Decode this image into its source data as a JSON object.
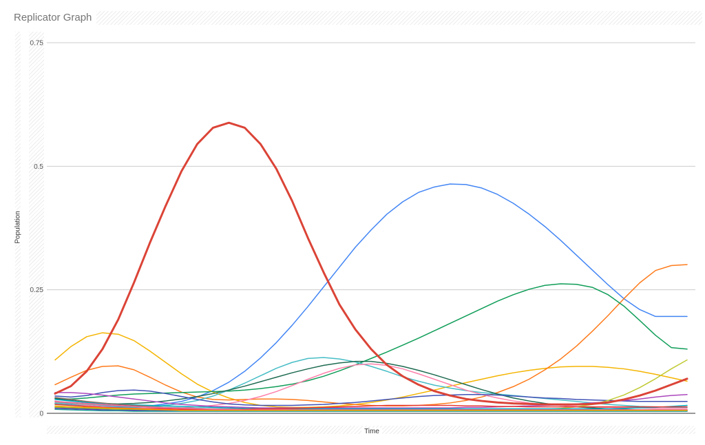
{
  "page": {
    "title": "Replicator Graph"
  },
  "chart_data": {
    "type": "line",
    "title": "Replicator Graph",
    "xlabel": "Time",
    "ylabel": "Population",
    "ylim": [
      0,
      0.75
    ],
    "yticks": [
      "0",
      "0.25",
      "0.5",
      "0.75"
    ],
    "xlim": [
      0,
      40
    ],
    "grid": true,
    "legend": "none",
    "series": [
      {
        "color": "#db4437",
        "width": 3,
        "values": [
          0.04,
          0.055,
          0.085,
          0.13,
          0.19,
          0.265,
          0.345,
          0.42,
          0.49,
          0.545,
          0.578,
          0.588,
          0.578,
          0.545,
          0.495,
          0.43,
          0.355,
          0.285,
          0.22,
          0.17,
          0.13,
          0.098,
          0.075,
          0.058,
          0.045,
          0.036,
          0.029,
          0.025,
          0.022,
          0.02,
          0.019,
          0.018,
          0.018,
          0.018,
          0.019,
          0.022,
          0.028,
          0.036,
          0.046,
          0.058,
          0.07
        ]
      },
      {
        "color": "#4285f4",
        "width": 1.5,
        "values": [
          0.02,
          0.018,
          0.016,
          0.014,
          0.013,
          0.013,
          0.015,
          0.019,
          0.024,
          0.033,
          0.046,
          0.063,
          0.085,
          0.112,
          0.143,
          0.178,
          0.216,
          0.256,
          0.296,
          0.336,
          0.371,
          0.403,
          0.428,
          0.447,
          0.458,
          0.464,
          0.463,
          0.456,
          0.443,
          0.425,
          0.403,
          0.378,
          0.35,
          0.32,
          0.29,
          0.26,
          0.232,
          0.21,
          0.196,
          0.196,
          0.196
        ]
      },
      {
        "color": "#f4b400",
        "width": 1.5,
        "values": [
          0.108,
          0.135,
          0.155,
          0.163,
          0.16,
          0.147,
          0.126,
          0.103,
          0.08,
          0.059,
          0.043,
          0.031,
          0.022,
          0.016,
          0.013,
          0.012,
          0.012,
          0.013,
          0.015,
          0.018,
          0.022,
          0.027,
          0.033,
          0.04,
          0.047,
          0.055,
          0.062,
          0.069,
          0.076,
          0.082,
          0.087,
          0.091,
          0.094,
          0.095,
          0.095,
          0.093,
          0.09,
          0.085,
          0.079,
          0.072,
          0.065
        ]
      },
      {
        "color": "#ff7a1a",
        "width": 1.5,
        "values": [
          0.058,
          0.073,
          0.087,
          0.095,
          0.096,
          0.088,
          0.073,
          0.057,
          0.043,
          0.033,
          0.028,
          0.027,
          0.028,
          0.029,
          0.029,
          0.028,
          0.026,
          0.023,
          0.02,
          0.018,
          0.016,
          0.015,
          0.015,
          0.016,
          0.018,
          0.021,
          0.026,
          0.033,
          0.042,
          0.054,
          0.069,
          0.088,
          0.11,
          0.136,
          0.166,
          0.198,
          0.232,
          0.264,
          0.289,
          0.299,
          0.301
        ]
      },
      {
        "color": "#0f9d58",
        "width": 1.5,
        "values": [
          0.03,
          0.029,
          0.031,
          0.034,
          0.037,
          0.039,
          0.04,
          0.041,
          0.042,
          0.043,
          0.044,
          0.045,
          0.047,
          0.05,
          0.054,
          0.059,
          0.066,
          0.075,
          0.086,
          0.098,
          0.111,
          0.124,
          0.138,
          0.152,
          0.167,
          0.182,
          0.197,
          0.212,
          0.227,
          0.24,
          0.251,
          0.259,
          0.262,
          0.261,
          0.255,
          0.24,
          0.217,
          0.188,
          0.158,
          0.133,
          0.13
        ]
      },
      {
        "color": "#46bdc6",
        "width": 1.5,
        "values": [
          0.02,
          0.017,
          0.015,
          0.013,
          0.012,
          0.012,
          0.013,
          0.016,
          0.02,
          0.026,
          0.035,
          0.047,
          0.061,
          0.076,
          0.091,
          0.103,
          0.111,
          0.113,
          0.11,
          0.104,
          0.095,
          0.085,
          0.074,
          0.065,
          0.057,
          0.051,
          0.046,
          0.042,
          0.039,
          0.036,
          0.033,
          0.03,
          0.027,
          0.024,
          0.021,
          0.018,
          0.016,
          0.014,
          0.013,
          0.012,
          0.012
        ]
      },
      {
        "color": "#1e6b52",
        "width": 1.5,
        "values": [
          0.03,
          0.026,
          0.022,
          0.02,
          0.019,
          0.02,
          0.022,
          0.025,
          0.029,
          0.034,
          0.04,
          0.047,
          0.055,
          0.064,
          0.073,
          0.082,
          0.09,
          0.097,
          0.102,
          0.105,
          0.105,
          0.101,
          0.095,
          0.087,
          0.078,
          0.068,
          0.058,
          0.048,
          0.039,
          0.031,
          0.025,
          0.02,
          0.016,
          0.013,
          0.011,
          0.009,
          0.008,
          0.007,
          0.006,
          0.006,
          0.006
        ]
      },
      {
        "color": "#ff80ab",
        "width": 1.5,
        "values": [
          0.025,
          0.02,
          0.016,
          0.013,
          0.011,
          0.01,
          0.01,
          0.01,
          0.011,
          0.013,
          0.016,
          0.02,
          0.026,
          0.034,
          0.044,
          0.056,
          0.069,
          0.081,
          0.091,
          0.098,
          0.1,
          0.097,
          0.09,
          0.08,
          0.069,
          0.058,
          0.047,
          0.038,
          0.031,
          0.025,
          0.021,
          0.018,
          0.016,
          0.014,
          0.013,
          0.012,
          0.011,
          0.011,
          0.01,
          0.01,
          0.01
        ]
      },
      {
        "color": "#3f51b5",
        "width": 1.5,
        "values": [
          0.035,
          0.033,
          0.036,
          0.042,
          0.046,
          0.047,
          0.045,
          0.04,
          0.034,
          0.028,
          0.023,
          0.019,
          0.017,
          0.016,
          0.016,
          0.016,
          0.017,
          0.018,
          0.02,
          0.022,
          0.025,
          0.028,
          0.031,
          0.034,
          0.036,
          0.037,
          0.038,
          0.038,
          0.037,
          0.035,
          0.033,
          0.031,
          0.03,
          0.028,
          0.027,
          0.026,
          0.025,
          0.024,
          0.024,
          0.024,
          0.024
        ]
      },
      {
        "color": "#c0ca33",
        "width": 1.5,
        "values": [
          0.015,
          0.013,
          0.011,
          0.01,
          0.009,
          0.008,
          0.008,
          0.008,
          0.008,
          0.008,
          0.008,
          0.008,
          0.008,
          0.008,
          0.008,
          0.008,
          0.008,
          0.008,
          0.008,
          0.008,
          0.008,
          0.008,
          0.008,
          0.008,
          0.008,
          0.008,
          0.008,
          0.008,
          0.008,
          0.008,
          0.008,
          0.008,
          0.01,
          0.013,
          0.018,
          0.026,
          0.037,
          0.052,
          0.07,
          0.09,
          0.108
        ]
      },
      {
        "color": "#ab47bc",
        "width": 1.5,
        "values": [
          0.042,
          0.042,
          0.04,
          0.037,
          0.033,
          0.029,
          0.025,
          0.021,
          0.018,
          0.016,
          0.014,
          0.013,
          0.012,
          0.011,
          0.011,
          0.011,
          0.011,
          0.011,
          0.011,
          0.011,
          0.011,
          0.011,
          0.011,
          0.011,
          0.011,
          0.011,
          0.012,
          0.012,
          0.013,
          0.014,
          0.015,
          0.016,
          0.017,
          0.019,
          0.021,
          0.023,
          0.026,
          0.029,
          0.033,
          0.036,
          0.038
        ]
      },
      {
        "color": "#00acc1",
        "width": 1.5,
        "values": [
          0.028,
          0.025,
          0.022,
          0.02,
          0.018,
          0.017,
          0.016,
          0.015,
          0.014,
          0.013,
          0.012,
          0.011,
          0.01,
          0.009,
          0.009,
          0.009,
          0.009,
          0.009,
          0.009,
          0.009,
          0.009,
          0.009,
          0.009,
          0.009,
          0.009,
          0.009,
          0.009,
          0.009,
          0.009,
          0.009,
          0.009,
          0.009,
          0.009,
          0.009,
          0.009,
          0.009,
          0.01,
          0.011,
          0.012,
          0.014,
          0.016
        ]
      },
      {
        "color": "#8d6e63",
        "width": 1.5,
        "values": [
          0.032,
          0.028,
          0.024,
          0.021,
          0.018,
          0.016,
          0.014,
          0.012,
          0.011,
          0.01,
          0.009,
          0.008,
          0.008,
          0.007,
          0.007,
          0.007,
          0.007,
          0.007,
          0.007,
          0.007,
          0.007,
          0.007,
          0.007,
          0.007,
          0.007,
          0.007,
          0.007,
          0.007,
          0.007,
          0.007,
          0.007,
          0.007,
          0.007,
          0.007,
          0.007,
          0.007,
          0.007,
          0.007,
          0.007,
          0.007,
          0.007
        ]
      },
      {
        "color": "#9e9e9e",
        "width": 1.5,
        "values": [
          0.022,
          0.02,
          0.018,
          0.016,
          0.015,
          0.014,
          0.013,
          0.012,
          0.011,
          0.01,
          0.009,
          0.009,
          0.008,
          0.008,
          0.008,
          0.007,
          0.007,
          0.007,
          0.007,
          0.007,
          0.007,
          0.007,
          0.007,
          0.007,
          0.007,
          0.007,
          0.007,
          0.007,
          0.007,
          0.007,
          0.007,
          0.007,
          0.007,
          0.007,
          0.007,
          0.007,
          0.007,
          0.007,
          0.007,
          0.007,
          0.007
        ]
      },
      {
        "color": "#e53935",
        "width": 1.5,
        "values": [
          0.018,
          0.016,
          0.014,
          0.012,
          0.011,
          0.01,
          0.009,
          0.009,
          0.008,
          0.008,
          0.008,
          0.008,
          0.008,
          0.009,
          0.009,
          0.01,
          0.011,
          0.012,
          0.013,
          0.014,
          0.015,
          0.016,
          0.016,
          0.016,
          0.016,
          0.016,
          0.015,
          0.015,
          0.014,
          0.014,
          0.013,
          0.013,
          0.013,
          0.013,
          0.013,
          0.013,
          0.013,
          0.013,
          0.013,
          0.013,
          0.013
        ]
      },
      {
        "color": "#7cb342",
        "width": 1.5,
        "values": [
          0.012,
          0.011,
          0.01,
          0.009,
          0.008,
          0.007,
          0.007,
          0.006,
          0.006,
          0.006,
          0.006,
          0.006,
          0.006,
          0.006,
          0.006,
          0.006,
          0.006,
          0.006,
          0.006,
          0.006,
          0.006,
          0.006,
          0.006,
          0.006,
          0.006,
          0.006,
          0.006,
          0.006,
          0.006,
          0.006,
          0.006,
          0.006,
          0.006,
          0.006,
          0.006,
          0.006,
          0.006,
          0.006,
          0.006,
          0.006,
          0.006
        ]
      },
      {
        "color": "#5e35b1",
        "width": 1.5,
        "values": [
          0.01,
          0.009,
          0.008,
          0.007,
          0.006,
          0.006,
          0.005,
          0.005,
          0.005,
          0.005,
          0.005,
          0.005,
          0.005,
          0.005,
          0.005,
          0.005,
          0.005,
          0.005,
          0.005,
          0.005,
          0.005,
          0.005,
          0.005,
          0.005,
          0.005,
          0.005,
          0.005,
          0.005,
          0.005,
          0.005,
          0.005,
          0.005,
          0.005,
          0.005,
          0.005,
          0.005,
          0.005,
          0.005,
          0.005,
          0.005,
          0.005
        ]
      },
      {
        "color": "#f06292",
        "width": 1.5,
        "values": [
          0.024,
          0.022,
          0.02,
          0.018,
          0.016,
          0.014,
          0.012,
          0.011,
          0.01,
          0.009,
          0.008,
          0.008,
          0.007,
          0.007,
          0.007,
          0.007,
          0.007,
          0.007,
          0.007,
          0.007,
          0.007,
          0.007,
          0.007,
          0.007,
          0.007,
          0.007,
          0.007,
          0.007,
          0.007,
          0.007,
          0.007,
          0.007,
          0.007,
          0.007,
          0.007,
          0.007,
          0.007,
          0.007,
          0.007,
          0.007,
          0.007
        ]
      },
      {
        "color": "#26a69a",
        "width": 1.5,
        "values": [
          0.008,
          0.007,
          0.006,
          0.005,
          0.005,
          0.004,
          0.004,
          0.004,
          0.004,
          0.004,
          0.004,
          0.004,
          0.004,
          0.004,
          0.004,
          0.004,
          0.004,
          0.004,
          0.004,
          0.004,
          0.004,
          0.004,
          0.004,
          0.004,
          0.004,
          0.004,
          0.004,
          0.004,
          0.004,
          0.004,
          0.004,
          0.004,
          0.004,
          0.004,
          0.004,
          0.004,
          0.004,
          0.004,
          0.004,
          0.004,
          0.004
        ]
      },
      {
        "color": "#ffa000",
        "width": 1.5,
        "values": [
          0.014,
          0.013,
          0.012,
          0.011,
          0.01,
          0.009,
          0.008,
          0.007,
          0.006,
          0.006,
          0.006,
          0.006,
          0.006,
          0.006,
          0.006,
          0.006,
          0.006,
          0.006,
          0.006,
          0.006,
          0.006,
          0.006,
          0.006,
          0.006,
          0.006,
          0.006,
          0.006,
          0.006,
          0.006,
          0.006,
          0.006,
          0.006,
          0.006,
          0.006,
          0.006,
          0.006,
          0.006,
          0.006,
          0.006,
          0.006,
          0.006
        ]
      }
    ]
  }
}
